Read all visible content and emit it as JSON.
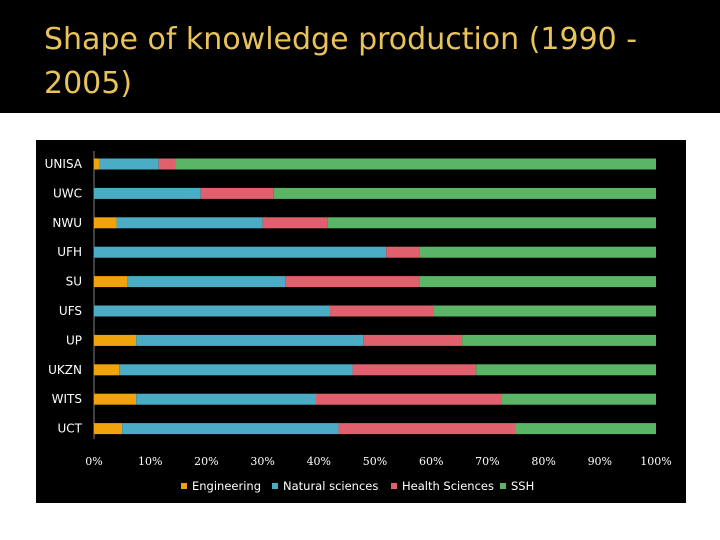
{
  "slide": {
    "title_line1": "Shape of knowledge production (1990 -",
    "title_line2": "2005)"
  },
  "colors": {
    "title": "#e8c25a",
    "background_band": "#000000",
    "chart_background": "#000000",
    "text": "#ffffff"
  },
  "chart_data": {
    "type": "bar",
    "orientation": "horizontal",
    "stacked": "percent",
    "title": "",
    "xlabel": "",
    "ylabel": "",
    "xlim": [
      0,
      100
    ],
    "x_ticks": [
      "0%",
      "10%",
      "20%",
      "30%",
      "40%",
      "50%",
      "60%",
      "70%",
      "80%",
      "90%",
      "100%"
    ],
    "categories": [
      "UNISA",
      "UWC",
      "NWU",
      "UFH",
      "SU",
      "UFS",
      "UP",
      "UKZN",
      "WITS",
      "UCT"
    ],
    "series": [
      {
        "name": "Engineering",
        "color": "#f0a30a",
        "values": [
          1,
          0,
          4,
          0,
          6,
          0,
          7.5,
          4.5,
          7.5,
          5
        ]
      },
      {
        "name": "Natural sciences",
        "color": "#4bacc6",
        "values": [
          10.5,
          19,
          26,
          52,
          28,
          42,
          40.5,
          41.5,
          32,
          38.5
        ]
      },
      {
        "name": "Health Sciences",
        "color": "#e0606e",
        "values": [
          3,
          13,
          11.5,
          6,
          24,
          18.5,
          17.5,
          22,
          33,
          31.5
        ]
      },
      {
        "name": "SSH",
        "color": "#5ab567",
        "values": [
          85.5,
          68,
          58.5,
          42,
          42,
          39.5,
          34.5,
          32,
          27.5,
          25
        ]
      }
    ],
    "legend_position": "bottom"
  }
}
